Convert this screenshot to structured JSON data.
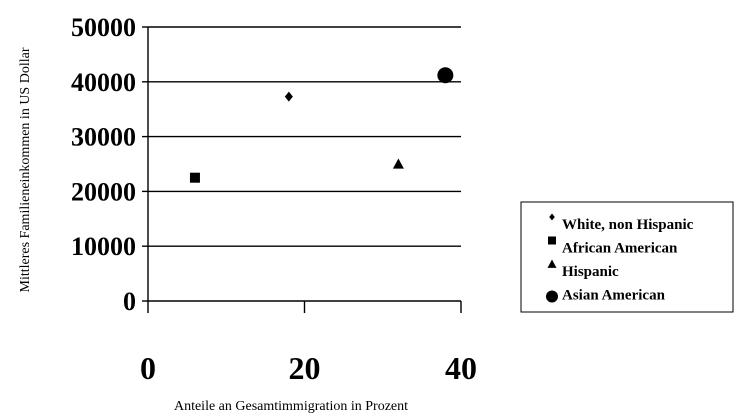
{
  "chart_data": {
    "type": "scatter",
    "xlabel": "Anteile an Gesamtimmigration in Prozent",
    "ylabel": "Mittleres Familieneinkommen in US Dollar",
    "xlim": [
      0,
      40
    ],
    "ylim": [
      0,
      50000
    ],
    "xticks": [
      "0",
      "20",
      "40"
    ],
    "yticks": [
      "0",
      "10000",
      "20000",
      "30000",
      "40000",
      "50000"
    ],
    "grid": "horizontal",
    "legend_position": "right",
    "series": [
      {
        "name": "White, non Hispanic",
        "marker": "diamond",
        "x": [
          18
        ],
        "y": [
          37300
        ]
      },
      {
        "name": "African American",
        "marker": "square",
        "x": [
          6
        ],
        "y": [
          22500
        ]
      },
      {
        "name": "Hispanic",
        "marker": "triangle",
        "x": [
          32
        ],
        "y": [
          25000
        ]
      },
      {
        "name": "Asian American",
        "marker": "circle",
        "x": [
          38
        ],
        "y": [
          41200
        ]
      }
    ],
    "colors": {
      "ink": "#000000",
      "background": "#ffffff"
    }
  }
}
